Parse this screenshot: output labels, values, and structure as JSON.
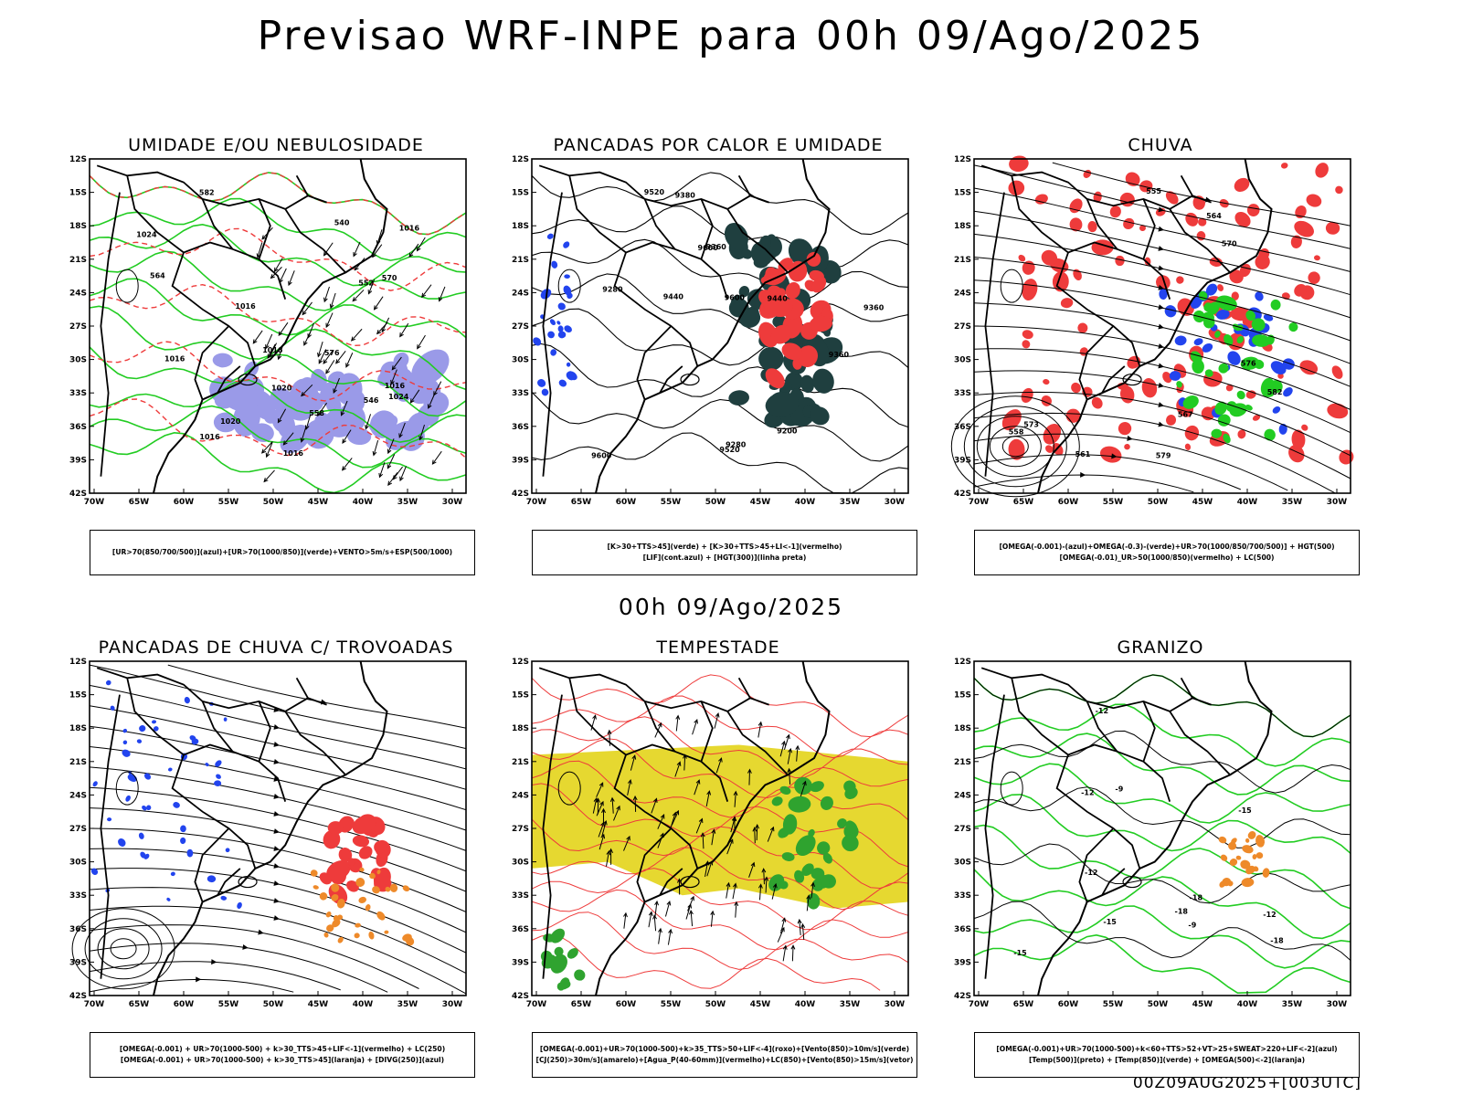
{
  "header": {
    "title": "Previsao WRF-INPE  para 00h 09/Ago/2025",
    "subtitle": "00h 09/Ago/2025",
    "footer": "00Z09AUG2025+[003UTC]"
  },
  "axes": {
    "lat_labels": [
      "12S",
      "15S",
      "18S",
      "21S",
      "24S",
      "27S",
      "30S",
      "33S",
      "36S",
      "39S",
      "42S"
    ],
    "lon_labels": [
      "70W",
      "65W",
      "60W",
      "55W",
      "50W",
      "45W",
      "40W",
      "35W",
      "30W"
    ]
  },
  "colors": {
    "green": "#22cc22",
    "red": "#ee3b3b",
    "blue": "#2244ee",
    "lavender": "#9a9ae8",
    "darkteal": "#1f3f3f",
    "yellow": "#e6d830",
    "orange": "#ee8a2a"
  },
  "chart_data": [
    {
      "type": "map",
      "title": "UMIDADE E/OU NEBULOSIDADE",
      "legend": [
        "[UR>70(850/700/500)](azul)+[UR>70(1000/850)](verde)+VENTO>5m/s+ESP(500/1000)"
      ],
      "contour_labels": [
        "1016",
        "1020",
        "1024",
        "1016",
        "1016",
        "1016",
        "1020",
        "1024",
        "1016",
        "1016",
        "1016",
        "564",
        "558",
        "552",
        "546",
        "540",
        "582",
        "576",
        "570"
      ]
    },
    {
      "type": "map",
      "title": "PANCADAS POR CALOR E UMIDADE",
      "legend": [
        "[K>30+TTS>45](verde) + [K>30+TTS>45+LI<-1](vermelho)",
        "[LIF](cont.azul) + [HGT(300)](linha preta)"
      ],
      "contour_labels": [
        "9600",
        "9520",
        "9600",
        "9600",
        "9520",
        "9440",
        "9360",
        "9280",
        "9200",
        "9440",
        "9360",
        "9280",
        "9360",
        "9380"
      ]
    },
    {
      "type": "map",
      "title": "CHUVA",
      "legend": [
        "[OMEGA(-0.001)-(azul)+OMEGA(-0.3)-(verde)+UR>70(1000/850/700/500)] + HGT(500)",
        "[OMEGA(-0.01)_UR>50(1000/850)(vermelho) + LC(500)"
      ],
      "contour_labels": [
        "582",
        "579",
        "576",
        "573",
        "570",
        "567",
        "564",
        "561",
        "558",
        "555"
      ]
    },
    {
      "type": "map",
      "title": "PANCADAS DE CHUVA C/ TROVOADAS",
      "legend": [
        "[OMEGA(-0.001) + UR>70(1000-500) + k>30_TTS>45+LIF<-1](vermelho) + LC(250)",
        "[OMEGA(-0.001) + UR>70(1000-500) + k>30_TTS>45](laranja) + [DIVG(250)](azul)"
      ],
      "contour_labels": []
    },
    {
      "type": "map",
      "title": "TEMPESTADE",
      "legend": [
        "[OMEGA(-0.001)+UR>70(1000-500)+k>35_TTS>50+LIF<-4](roxo)+[Vento(850)>10m/s](verde)",
        "[CJ(250)>30m/s](amarelo)+[Agua_P(40-60mm)](vermelho)+LC(850)+[Vento(850)>15m/s](vetor)"
      ],
      "contour_labels": []
    },
    {
      "type": "map",
      "title": "GRANIZO",
      "legend": [
        "[OMEGA(-0.001)+UR>70(1000-500)+k<60+TTS>52+VT>25+SWEAT>220+LIF<-2](azul)",
        "[Temp(500)](preto) + [Temp(850)](verde) + [OMEGA(500)<-2](laranja)"
      ],
      "contour_labels": [
        "-9",
        "-12",
        "-15",
        "-18",
        "-9",
        "-12",
        "-15",
        "-18",
        "-12",
        "-15",
        "-18",
        "-12"
      ]
    }
  ]
}
